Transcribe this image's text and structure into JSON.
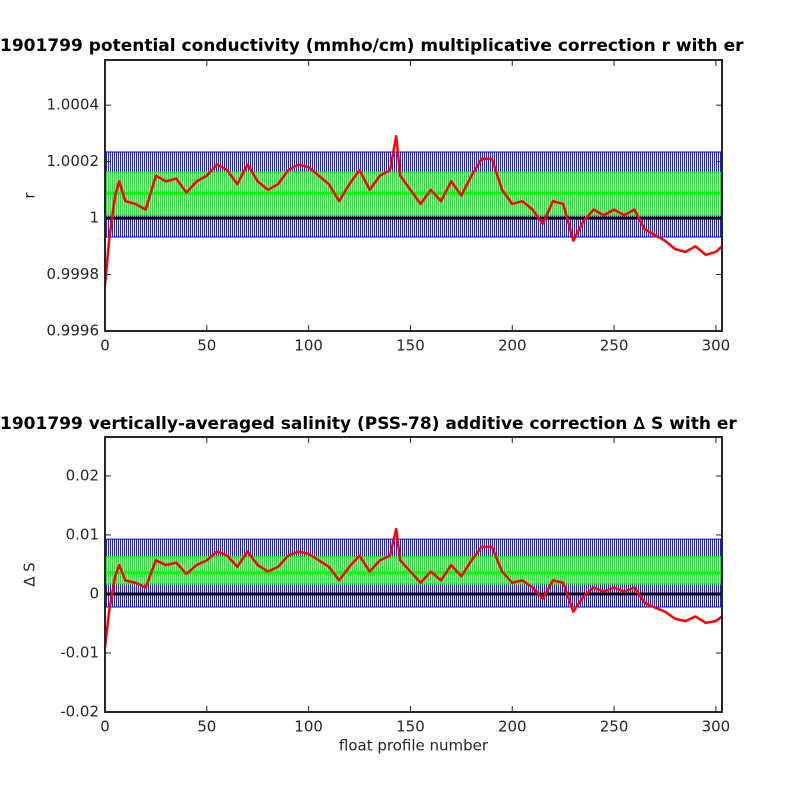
{
  "chart_data": [
    {
      "type": "line",
      "title": "1901799 potential conductivity (mmho/cm) multiplicative correction r with er",
      "ylabel": "r",
      "x": [
        0,
        2,
        5,
        7,
        10,
        15,
        20,
        25,
        30,
        35,
        40,
        45,
        50,
        55,
        60,
        65,
        70,
        75,
        80,
        85,
        90,
        95,
        100,
        105,
        110,
        115,
        120,
        125,
        130,
        135,
        140,
        143,
        145,
        150,
        155,
        160,
        165,
        170,
        175,
        180,
        185,
        190,
        195,
        200,
        205,
        210,
        215,
        220,
        225,
        230,
        235,
        240,
        245,
        250,
        255,
        260,
        265,
        270,
        275,
        280,
        285,
        290,
        295,
        300,
        303
      ],
      "series": [
        {
          "color": "#ff0000",
          "values": [
            0.99976,
            0.99992,
            1.00008,
            1.00013,
            1.00006,
            1.00005,
            1.00003,
            1.00015,
            1.00013,
            1.00014,
            1.00009,
            1.00013,
            1.00015,
            1.00019,
            1.00017,
            1.00012,
            1.00019,
            1.00013,
            1.0001,
            1.00012,
            1.00017,
            1.00019,
            1.00018,
            1.00015,
            1.00012,
            1.00006,
            1.00012,
            1.00017,
            1.0001,
            1.00015,
            1.00017,
            1.00029,
            1.00015,
            1.0001,
            1.00005,
            1.0001,
            1.00006,
            1.00013,
            1.00008,
            1.00015,
            1.00021,
            1.00021,
            1.0001,
            1.00005,
            1.00006,
            1.00003,
            0.99998,
            1.00006,
            1.00005,
            0.99992,
            0.99999,
            1.00003,
            1.00001,
            1.00003,
            1.00001,
            1.00003,
            0.99996,
            0.99994,
            0.99992,
            0.99989,
            0.99988,
            0.9999,
            0.99987,
            0.99988,
            0.9999
          ]
        }
      ],
      "bands": [
        {
          "color": "#0000ff",
          "lower": 0.999933,
          "upper": 1.000234
        },
        {
          "color": "#00ff00",
          "lower": 1.00001,
          "upper": 1.000163
        }
      ],
      "hlines": [
        {
          "color": "#00ff00",
          "value": 1.000088
        },
        {
          "color": "#000000",
          "value": 1
        }
      ],
      "xlim": [
        0,
        303
      ],
      "ylim": [
        0.9996,
        1.00056
      ],
      "xticks": [
        0,
        50,
        100,
        150,
        200,
        250,
        300
      ],
      "yticks": [
        0.9996,
        0.9998,
        1,
        1.0002,
        1.0004
      ]
    },
    {
      "type": "line",
      "title": "1901799 vertically-averaged salinity (PSS-78) additive correction ∆ S with er",
      "ylabel": "∆ S",
      "xlabel": "float profile number",
      "x": [
        0,
        2,
        5,
        7,
        10,
        15,
        20,
        25,
        30,
        35,
        40,
        45,
        50,
        55,
        60,
        65,
        70,
        75,
        80,
        85,
        90,
        95,
        100,
        105,
        110,
        115,
        120,
        125,
        130,
        135,
        140,
        143,
        145,
        150,
        155,
        160,
        165,
        170,
        175,
        180,
        185,
        190,
        195,
        200,
        205,
        210,
        215,
        220,
        225,
        230,
        235,
        240,
        245,
        250,
        255,
        260,
        265,
        270,
        275,
        280,
        285,
        290,
        295,
        300,
        303
      ],
      "series": [
        {
          "color": "#ff0000",
          "values": [
            -0.0091,
            -0.003,
            0.003,
            0.0049,
            0.0023,
            0.0019,
            0.0011,
            0.0057,
            0.0049,
            0.0053,
            0.0034,
            0.0049,
            0.0057,
            0.0072,
            0.0065,
            0.0046,
            0.0072,
            0.0049,
            0.0038,
            0.0046,
            0.0065,
            0.0072,
            0.0068,
            0.0057,
            0.0046,
            0.0023,
            0.0046,
            0.0065,
            0.0038,
            0.0057,
            0.0065,
            0.011,
            0.0057,
            0.0038,
            0.0019,
            0.0038,
            0.0023,
            0.0049,
            0.003,
            0.0057,
            0.008,
            0.008,
            0.0038,
            0.0019,
            0.0023,
            0.0011,
            -0.0008,
            0.0023,
            0.0019,
            -0.003,
            -0.0004,
            0.0011,
            0.0004,
            0.0011,
            0.0004,
            0.0011,
            -0.0015,
            -0.0023,
            -0.003,
            -0.0042,
            -0.0046,
            -0.0038,
            -0.0049,
            -0.0046,
            -0.0038
          ]
        }
      ],
      "bands": [
        {
          "color": "#0000ff",
          "lower": -0.0022,
          "upper": 0.0093
        },
        {
          "color": "#00ff00",
          "lower": 0.0017,
          "upper": 0.0063
        }
      ],
      "hlines": [
        {
          "color": "#00ff00",
          "value": 0.0036
        },
        {
          "color": "#000000",
          "value": 0
        }
      ],
      "xlim": [
        0,
        303
      ],
      "ylim": [
        -0.02,
        0.0266
      ],
      "xticks": [
        0,
        50,
        100,
        150,
        200,
        250,
        300
      ],
      "yticks": [
        -0.02,
        -0.01,
        0,
        0.01,
        0.02
      ]
    }
  ]
}
